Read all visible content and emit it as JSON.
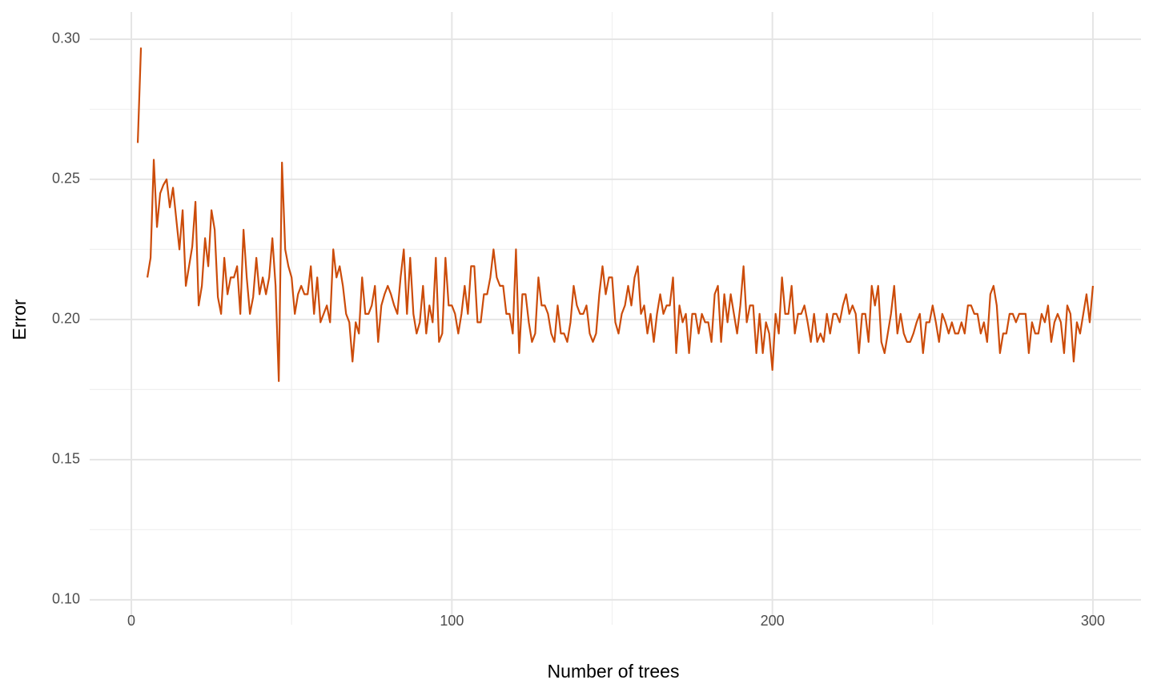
{
  "chart_data": {
    "type": "line",
    "x_label": "Number of trees",
    "y_label": "Error",
    "xlim": [
      -13,
      315
    ],
    "ylim": [
      0.0911,
      0.3097
    ],
    "xticks": [
      0,
      100,
      200,
      300
    ],
    "xminor": [
      50,
      150,
      250
    ],
    "yticks": [
      {
        "value": 0.1,
        "label": "0.10"
      },
      {
        "value": 0.15,
        "label": "0.15"
      },
      {
        "value": 0.2,
        "label": "0.20"
      },
      {
        "value": 0.25,
        "label": "0.25"
      },
      {
        "value": 0.3,
        "label": "0.30"
      }
    ],
    "yminor": [
      0.125,
      0.175,
      0.225,
      0.275
    ],
    "grid": true,
    "x": [
      1,
      2,
      3,
      4,
      5,
      6,
      7,
      8,
      9,
      10,
      11,
      12,
      13,
      14,
      15,
      16,
      17,
      18,
      19,
      20,
      21,
      22,
      23,
      24,
      25,
      26,
      27,
      28,
      29,
      30,
      31,
      32,
      33,
      34,
      35,
      36,
      37,
      38,
      39,
      40,
      41,
      42,
      43,
      44,
      45,
      46,
      47,
      48,
      49,
      50,
      51,
      52,
      53,
      54,
      55,
      56,
      57,
      58,
      59,
      60,
      61,
      62,
      63,
      64,
      65,
      66,
      67,
      68,
      69,
      70,
      71,
      72,
      73,
      74,
      75,
      76,
      77,
      78,
      79,
      80,
      81,
      82,
      83,
      84,
      85,
      86,
      87,
      88,
      89,
      90,
      91,
      92,
      93,
      94,
      95,
      96,
      97,
      98,
      99,
      100,
      101,
      102,
      103,
      104,
      105,
      106,
      107,
      108,
      109,
      110,
      111,
      112,
      113,
      114,
      115,
      116,
      117,
      118,
      119,
      120,
      121,
      122,
      123,
      124,
      125,
      126,
      127,
      128,
      129,
      130,
      131,
      132,
      133,
      134,
      135,
      136,
      137,
      138,
      139,
      140,
      141,
      142,
      143,
      144,
      145,
      146,
      147,
      148,
      149,
      150,
      151,
      152,
      153,
      154,
      155,
      156,
      157,
      158,
      159,
      160,
      161,
      162,
      163,
      164,
      165,
      166,
      167,
      168,
      169,
      170,
      171,
      172,
      173,
      174,
      175,
      176,
      177,
      178,
      179,
      180,
      181,
      182,
      183,
      184,
      185,
      186,
      187,
      188,
      189,
      190,
      191,
      192,
      193,
      194,
      195,
      196,
      197,
      198,
      199,
      200,
      201,
      202,
      203,
      204,
      205,
      206,
      207,
      208,
      209,
      210,
      211,
      212,
      213,
      214,
      215,
      216,
      217,
      218,
      219,
      220,
      221,
      222,
      223,
      224,
      225,
      226,
      227,
      228,
      229,
      230,
      231,
      232,
      233,
      234,
      235,
      236,
      237,
      238,
      239,
      240,
      241,
      242,
      243,
      244,
      245,
      246,
      247,
      248,
      249,
      250,
      251,
      252,
      253,
      254,
      255,
      256,
      257,
      258,
      259,
      260,
      261,
      262,
      263,
      264,
      265,
      266,
      267,
      268,
      269,
      270,
      271,
      272,
      273,
      274,
      275,
      276,
      277,
      278,
      279,
      280,
      281,
      282,
      283,
      284,
      285,
      286,
      287,
      288,
      289,
      290,
      291,
      292,
      293,
      294,
      295,
      296,
      297,
      298,
      299,
      300
    ],
    "series": [
      {
        "color": "#cc4c0a",
        "values": [
          null,
          0.263,
          0.297,
          null,
          0.215,
          0.222,
          0.257,
          0.233,
          0.245,
          0.248,
          0.25,
          0.24,
          0.247,
          0.236,
          0.225,
          0.239,
          0.212,
          0.219,
          0.226,
          0.242,
          0.205,
          0.212,
          0.229,
          0.219,
          0.239,
          0.232,
          0.208,
          0.202,
          0.222,
          0.209,
          0.215,
          0.215,
          0.219,
          0.202,
          0.232,
          0.215,
          0.202,
          0.208,
          0.222,
          0.209,
          0.215,
          0.209,
          0.215,
          0.229,
          0.212,
          0.178,
          0.256,
          0.225,
          0.219,
          0.215,
          0.202,
          0.209,
          0.212,
          0.209,
          0.209,
          0.219,
          0.202,
          0.215,
          0.199,
          0.202,
          0.205,
          0.199,
          0.225,
          0.215,
          0.219,
          0.212,
          0.202,
          0.199,
          0.185,
          0.199,
          0.195,
          0.215,
          0.202,
          0.202,
          0.205,
          0.212,
          0.192,
          0.205,
          0.209,
          0.212,
          0.209,
          0.205,
          0.202,
          0.215,
          0.225,
          0.202,
          0.222,
          0.202,
          0.195,
          0.199,
          0.212,
          0.195,
          0.205,
          0.199,
          0.222,
          0.192,
          0.195,
          0.222,
          0.205,
          0.205,
          0.202,
          0.195,
          0.202,
          0.212,
          0.202,
          0.219,
          0.219,
          0.199,
          0.199,
          0.209,
          0.209,
          0.215,
          0.225,
          0.215,
          0.212,
          0.212,
          0.202,
          0.202,
          0.195,
          0.225,
          0.188,
          0.209,
          0.209,
          0.199,
          0.192,
          0.195,
          0.215,
          0.205,
          0.205,
          0.202,
          0.195,
          0.192,
          0.205,
          0.195,
          0.195,
          0.192,
          0.199,
          0.212,
          0.205,
          0.202,
          0.202,
          0.205,
          0.195,
          0.192,
          0.195,
          0.209,
          0.219,
          0.209,
          0.215,
          0.215,
          0.199,
          0.195,
          0.202,
          0.205,
          0.212,
          0.205,
          0.215,
          0.219,
          0.202,
          0.205,
          0.195,
          0.202,
          0.192,
          0.202,
          0.209,
          0.202,
          0.205,
          0.205,
          0.215,
          0.188,
          0.205,
          0.199,
          0.202,
          0.188,
          0.202,
          0.202,
          0.195,
          0.202,
          0.199,
          0.199,
          0.192,
          0.209,
          0.212,
          0.192,
          0.209,
          0.199,
          0.209,
          0.202,
          0.195,
          0.205,
          0.219,
          0.199,
          0.205,
          0.205,
          0.188,
          0.202,
          0.188,
          0.199,
          0.195,
          0.182,
          0.202,
          0.195,
          0.215,
          0.202,
          0.202,
          0.212,
          0.195,
          0.202,
          0.202,
          0.205,
          0.199,
          0.192,
          0.202,
          0.192,
          0.195,
          0.192,
          0.202,
          0.195,
          0.202,
          0.202,
          0.199,
          0.205,
          0.209,
          0.202,
          0.205,
          0.202,
          0.188,
          0.202,
          0.202,
          0.192,
          0.212,
          0.205,
          0.212,
          0.192,
          0.188,
          0.195,
          0.202,
          0.212,
          0.195,
          0.202,
          0.195,
          0.192,
          0.192,
          0.195,
          0.199,
          0.202,
          0.188,
          0.199,
          0.199,
          0.205,
          0.199,
          0.192,
          0.202,
          0.199,
          0.195,
          0.199,
          0.195,
          0.195,
          0.199,
          0.195,
          0.205,
          0.205,
          0.202,
          0.202,
          0.195,
          0.199,
          0.192,
          0.209,
          0.212,
          0.205,
          0.188,
          0.195,
          0.195,
          0.202,
          0.202,
          0.199,
          0.202,
          0.202,
          0.202,
          0.188,
          0.199,
          0.195,
          0.195,
          0.202,
          0.199,
          0.205,
          0.192,
          0.199,
          0.202,
          0.199,
          0.188,
          0.205,
          0.202,
          0.185,
          0.199,
          0.195,
          0.202,
          0.209,
          0.199,
          0.212
        ]
      }
    ]
  }
}
